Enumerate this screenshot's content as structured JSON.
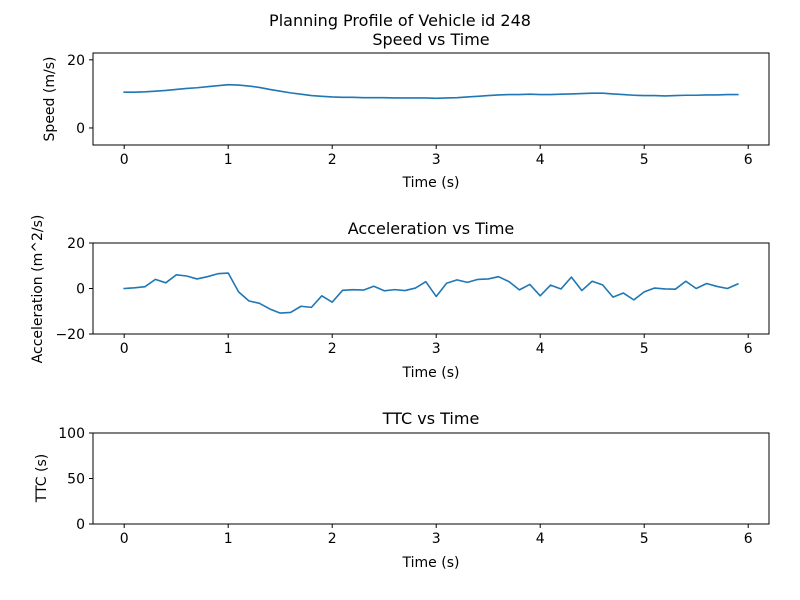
{
  "figure": {
    "suptitle": "Planning Profile of Vehicle id 248"
  },
  "chart_data": [
    {
      "type": "line",
      "title": "Speed vs Time",
      "xlabel": "Time (s)",
      "ylabel": "Speed (m/s)",
      "xlim": [
        -0.3,
        6.2
      ],
      "ylim": [
        -5,
        22
      ],
      "xticks": [
        0,
        1,
        2,
        3,
        4,
        5,
        6
      ],
      "yticks": [
        0,
        20
      ],
      "grid": false,
      "color": "#1f77b4",
      "series": [
        {
          "x": [
            0,
            0.1,
            0.2,
            0.3,
            0.4,
            0.5,
            0.6,
            0.7,
            0.8,
            0.9,
            1.0,
            1.1,
            1.2,
            1.3,
            1.4,
            1.5,
            1.6,
            1.7,
            1.8,
            1.9,
            2.0,
            2.1,
            2.2,
            2.3,
            2.4,
            2.5,
            2.6,
            2.7,
            2.8,
            2.9,
            3.0,
            3.1,
            3.2,
            3.3,
            3.4,
            3.5,
            3.6,
            3.7,
            3.8,
            3.9,
            4.0,
            4.1,
            4.2,
            4.3,
            4.4,
            4.5,
            4.6,
            4.7,
            4.8,
            4.9,
            5.0,
            5.1,
            5.2,
            5.3,
            5.4,
            5.5,
            5.6,
            5.7,
            5.8,
            5.9
          ],
          "y": [
            10.5,
            10.5,
            10.6,
            10.8,
            11.0,
            11.3,
            11.6,
            11.8,
            12.1,
            12.4,
            12.7,
            12.6,
            12.3,
            11.9,
            11.3,
            10.8,
            10.3,
            9.9,
            9.5,
            9.3,
            9.1,
            9.0,
            9.0,
            8.9,
            8.9,
            8.9,
            8.8,
            8.8,
            8.8,
            8.8,
            8.7,
            8.8,
            8.9,
            9.1,
            9.3,
            9.5,
            9.7,
            9.8,
            9.8,
            9.9,
            9.8,
            9.8,
            9.9,
            10.0,
            10.1,
            10.2,
            10.2,
            10.0,
            9.8,
            9.6,
            9.5,
            9.5,
            9.4,
            9.5,
            9.6,
            9.6,
            9.7,
            9.7,
            9.8,
            9.8
          ]
        }
      ]
    },
    {
      "type": "line",
      "title": "Acceleration vs Time",
      "xlabel": "Time (s)",
      "ylabel": "Acceleration (m^2/s)",
      "xlim": [
        -0.3,
        6.2
      ],
      "ylim": [
        -20,
        20
      ],
      "xticks": [
        0,
        1,
        2,
        3,
        4,
        5,
        6
      ],
      "yticks": [
        -20,
        0,
        20
      ],
      "grid": false,
      "color": "#1f77b4",
      "series": [
        {
          "x": [
            0,
            0.1,
            0.2,
            0.3,
            0.4,
            0.5,
            0.6,
            0.7,
            0.8,
            0.9,
            1.0,
            1.1,
            1.2,
            1.3,
            1.4,
            1.5,
            1.6,
            1.7,
            1.8,
            1.9,
            2.0,
            2.1,
            2.2,
            2.3,
            2.4,
            2.5,
            2.6,
            2.7,
            2.8,
            2.9,
            3.0,
            3.1,
            3.2,
            3.3,
            3.4,
            3.5,
            3.6,
            3.7,
            3.8,
            3.9,
            4.0,
            4.1,
            4.2,
            4.3,
            4.4,
            4.5,
            4.6,
            4.7,
            4.8,
            4.9,
            5.0,
            5.1,
            5.2,
            5.3,
            5.4,
            5.5,
            5.6,
            5.7,
            5.8,
            5.9
          ],
          "y": [
            0.0,
            0.3,
            0.8,
            4.0,
            2.5,
            6.0,
            5.5,
            4.2,
            5.2,
            6.5,
            6.8,
            -1.5,
            -5.5,
            -6.5,
            -9.0,
            -10.8,
            -10.5,
            -7.8,
            -8.3,
            -3.2,
            -6.0,
            -0.8,
            -0.5,
            -0.7,
            1.0,
            -1.0,
            -0.5,
            -0.9,
            0.2,
            3.0,
            -3.5,
            2.3,
            3.8,
            2.7,
            4.0,
            4.2,
            5.2,
            3.0,
            -0.6,
            1.8,
            -3.2,
            1.5,
            -0.2,
            5.0,
            -0.9,
            3.2,
            1.6,
            -3.8,
            -2.0,
            -5.0,
            -1.5,
            0.2,
            -0.2,
            -0.3,
            3.2,
            0.0,
            2.2,
            0.9,
            0.0,
            2.0
          ]
        }
      ]
    },
    {
      "type": "line",
      "title": "TTC vs Time",
      "xlabel": "Time (s)",
      "ylabel": "TTC (s)",
      "xlim": [
        -0.3,
        6.2
      ],
      "ylim": [
        0,
        100
      ],
      "xticks": [
        0,
        1,
        2,
        3,
        4,
        5,
        6
      ],
      "yticks": [
        0,
        50,
        100
      ],
      "grid": false,
      "series": []
    }
  ]
}
